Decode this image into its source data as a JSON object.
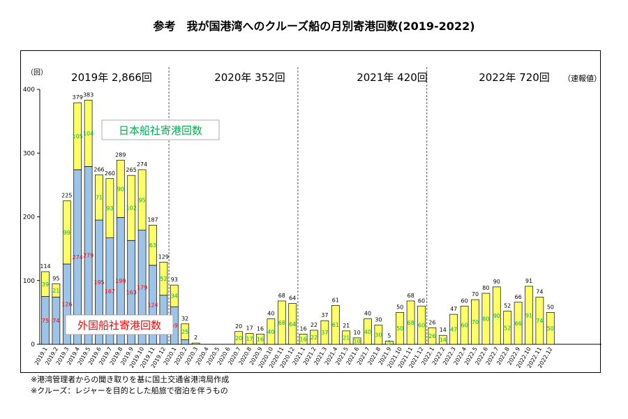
{
  "title": "参考　我が国港湾へのクルーズ船の月別寄港回数(2019-2022)",
  "notes": [
    "※港湾管理者からの聞き取りを基に国土交通省港湾局作成",
    "※クルーズ：レジャーを目的とした船旅で宿泊を伴うもの"
  ],
  "colors": {
    "domestic": "#ffff66",
    "foreign": "#9dc3e6",
    "domestic_label": "#00b050",
    "foreign_label": "#ff0000",
    "bar_edge": "#000000"
  },
  "chart_data": {
    "type": "bar",
    "stacked": true,
    "ylabel": "（回）",
    "ylim": [
      0,
      400
    ],
    "yticks": [
      0,
      100,
      200,
      300,
      400
    ],
    "grid": false,
    "categories": [
      "2019.1",
      "2019.2",
      "2019.3",
      "2019.4",
      "2019.5",
      "2019.6",
      "2019.7",
      "2019.8",
      "2019.9",
      "2019.10",
      "2019.11",
      "2019.12",
      "2020.1",
      "2020.2",
      "2020.3",
      "2020.4",
      "2020.5",
      "2020.6",
      "2020.7",
      "2020.8",
      "2020.9",
      "2020.10",
      "2020.11",
      "2020.12",
      "2021.1",
      "2021.2",
      "2021.3",
      "2021.4",
      "2021.5",
      "2021.6",
      "2021.7",
      "2021.8",
      "2021.9",
      "2021.10",
      "2021.11",
      "2021.12",
      "2022.1",
      "2022.2",
      "2022.3",
      "2022.4",
      "2022.5",
      "2022.6",
      "2022.7",
      "2022.8",
      "2022.9",
      "2022.10",
      "2022.11",
      "2022.12"
    ],
    "totals": [
      114,
      95,
      225,
      379,
      383,
      266,
      260,
      289,
      265,
      274,
      187,
      129,
      93,
      32,
      2,
      null,
      null,
      null,
      20,
      17,
      16,
      40,
      68,
      64,
      16,
      22,
      37,
      61,
      21,
      10,
      40,
      30,
      5,
      50,
      68,
      60,
      26,
      14,
      47,
      60,
      70,
      80,
      90,
      52,
      66,
      91,
      74,
      50
    ],
    "series": [
      {
        "name": "外国船社寄港回数",
        "values": [
          75,
          74,
          126,
          274,
          279,
          195,
          167,
          199,
          163,
          179,
          124,
          77,
          59,
          7,
          0,
          0,
          0,
          0,
          0,
          0,
          0,
          0,
          0,
          0,
          0,
          0,
          0,
          0,
          0,
          0,
          0,
          0,
          0,
          0,
          0,
          0,
          0,
          0,
          0,
          0,
          0,
          0,
          0,
          0,
          0,
          0,
          0,
          0
        ]
      },
      {
        "name": "日本船社寄港回数",
        "values": [
          39,
          21,
          99,
          105,
          104,
          71,
          93,
          90,
          102,
          95,
          63,
          52,
          34,
          25,
          2,
          0,
          0,
          0,
          20,
          17,
          16,
          40,
          68,
          64,
          16,
          22,
          37,
          61,
          21,
          10,
          40,
          30,
          5,
          50,
          68,
          60,
          26,
          14,
          47,
          60,
          70,
          80,
          90,
          52,
          66,
          91,
          74,
          50
        ]
      }
    ],
    "foreign_labels": [
      "75",
      "74",
      "126",
      "274",
      "279",
      "195",
      "167",
      "199",
      "163",
      "179",
      "124",
      "",
      "59",
      "",
      "",
      "",
      "",
      "",
      "",
      "",
      "",
      "",
      "",
      "",
      "",
      "",
      "",
      "",
      "",
      "",
      "",
      "",
      "",
      "",
      "",
      "",
      "",
      "",
      "",
      "",
      "",
      "",
      "",
      "",
      "",
      "",
      "",
      ""
    ],
    "domestic_labels": [
      "39",
      "21",
      "99",
      "105",
      "104",
      "71",
      "93",
      "90",
      "102",
      "95",
      "63",
      "52",
      "34",
      "25",
      "",
      "",
      "",
      "",
      "20",
      "17",
      "16",
      "40",
      "68",
      "64",
      "16",
      "22",
      "37",
      "61",
      "21",
      "10",
      "40",
      "30",
      "5",
      "50",
      "68",
      "60",
      "26",
      "14",
      "47",
      "60",
      "70",
      "80",
      "90",
      "52",
      "66",
      "91",
      "74",
      "50"
    ],
    "year_totals": [
      "2019年 2,866回",
      "2020年 352回",
      "2021年 420回",
      "2022年 720回"
    ],
    "year_total_note": "（速報値）",
    "legend": {
      "domestic": "日本船社寄港回数",
      "foreign": "外国船社寄港回数"
    }
  }
}
